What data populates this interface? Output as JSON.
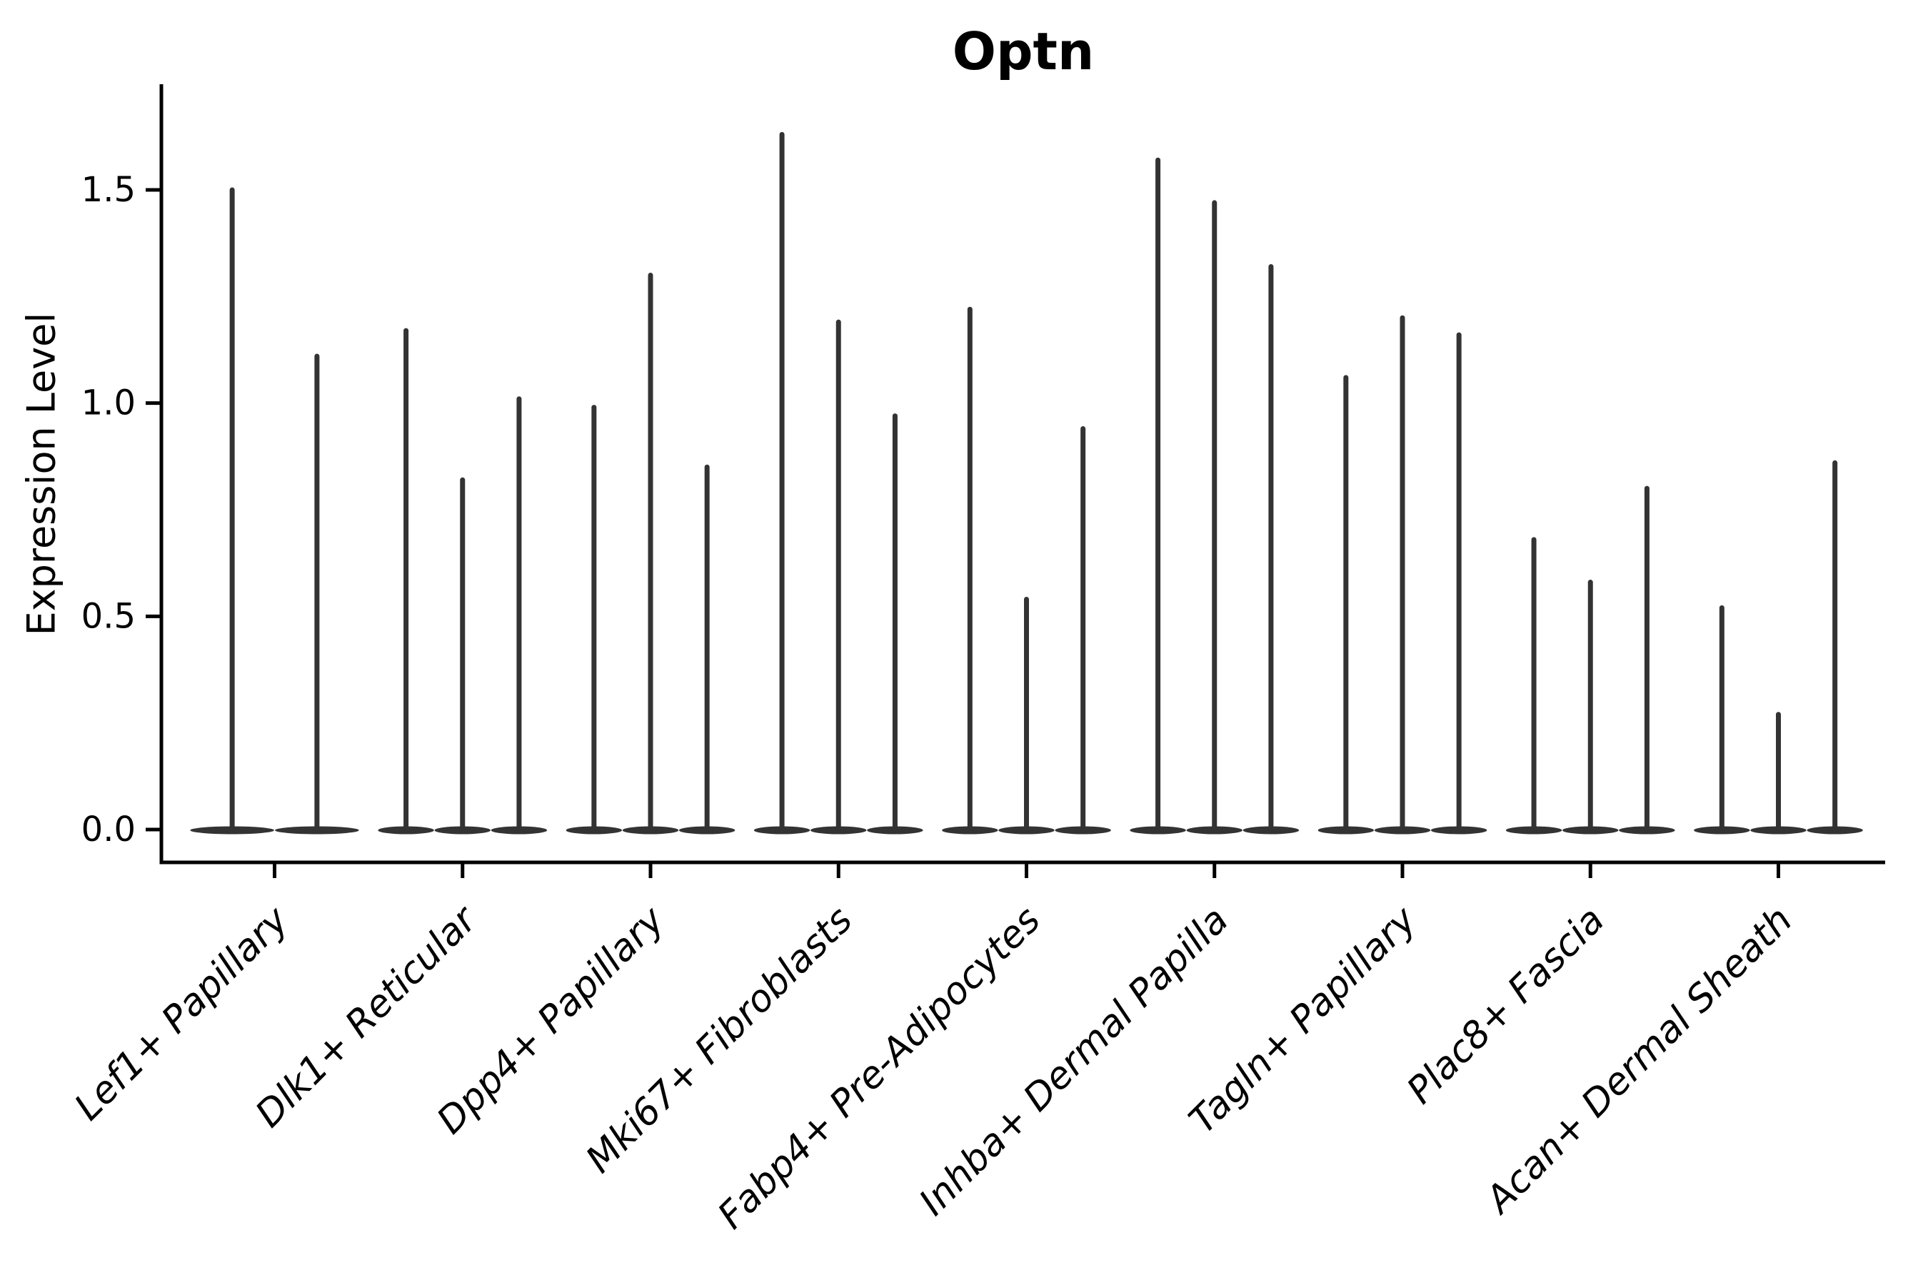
{
  "figure": {
    "background": "#ffffff",
    "axis_color": "#000000",
    "violin_color": "#333333"
  },
  "chart_data": {
    "type": "violin",
    "title": "Optn",
    "ylabel": "Expression Level",
    "xlabel": "",
    "ylim": [
      0,
      1.74
    ],
    "yticks": [
      0,
      0.5,
      1.0,
      1.5
    ],
    "ytick_labels": [
      "0.0",
      "0.5",
      "1.0",
      "1.5"
    ],
    "grid": false,
    "legend": "none",
    "violin_style": "narrow spikes rising from a flat mass at 0; bulk of distribution at expression 0",
    "categories": [
      "Lef1+ Papillary",
      "Dlk1+ Reticular",
      "Dpp4+ Papillary",
      "Mki67+ Fibroblasts",
      "Fabp4+ Pre-Adipocytes",
      "Inhba+ Dermal Papilla",
      "Tagln+ Papillary",
      "Plac8+ Fascia",
      "Acan+ Dermal Sheath"
    ],
    "groups": [
      {
        "category": "Lef1+ Papillary",
        "violin_max_expression": [
          1.5,
          1.11
        ]
      },
      {
        "category": "Dlk1+ Reticular",
        "violin_max_expression": [
          1.17,
          0.82,
          1.01
        ]
      },
      {
        "category": "Dpp4+ Papillary",
        "violin_max_expression": [
          0.99,
          1.3,
          0.85
        ]
      },
      {
        "category": "Mki67+ Fibroblasts",
        "violin_max_expression": [
          1.63,
          1.19,
          0.97
        ]
      },
      {
        "category": "Fabp4+ Pre-Adipocytes",
        "violin_max_expression": [
          1.22,
          0.54,
          0.94
        ]
      },
      {
        "category": "Inhba+ Dermal Papilla",
        "violin_max_expression": [
          1.57,
          1.47,
          1.32
        ]
      },
      {
        "category": "Tagln+ Papillary",
        "violin_max_expression": [
          1.06,
          1.2,
          1.16
        ]
      },
      {
        "category": "Plac8+ Fascia",
        "violin_max_expression": [
          0.68,
          0.58,
          0.8
        ]
      },
      {
        "category": "Acan+ Dermal Sheath",
        "violin_max_expression": [
          0.52,
          0.27,
          0.86
        ]
      }
    ]
  }
}
